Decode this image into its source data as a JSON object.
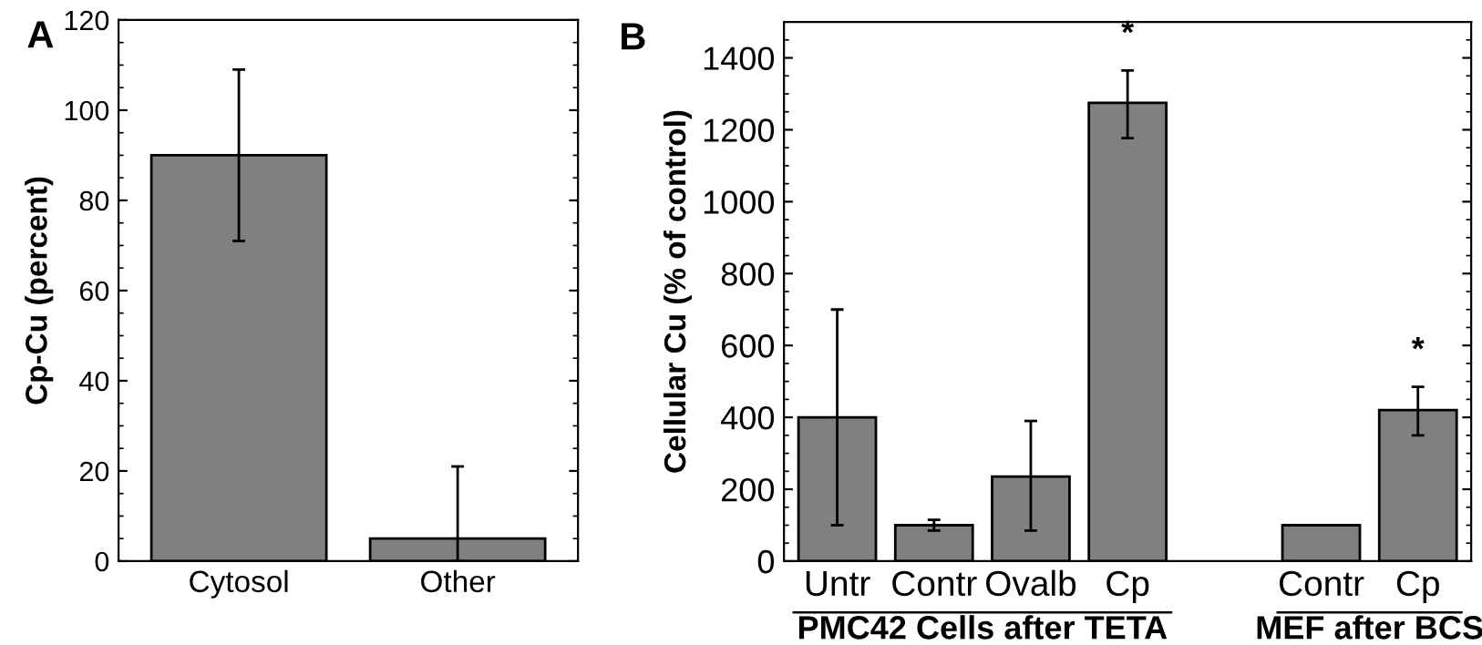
{
  "chart_data": [
    {
      "type": "bar",
      "title": "A",
      "ylabel": "Cp-Cu (percent)",
      "categories": [
        "Cytosol",
        "Other"
      ],
      "values": [
        90,
        5
      ],
      "errors": [
        [
          71,
          109
        ],
        [
          0,
          21
        ]
      ],
      "color": "#808080",
      "ylim": [
        0,
        120
      ],
      "yticks": [
        0,
        20,
        40,
        60,
        80,
        100,
        120
      ],
      "grid": false,
      "legend": false
    },
    {
      "type": "bar",
      "title": "B",
      "ylabel": "Cellular Cu (% of control)",
      "categories": [
        "Untr",
        "Contr",
        "Ovalb",
        "Cp",
        null,
        "Contr",
        "Cp"
      ],
      "values": [
        400,
        100,
        235,
        1275,
        null,
        100,
        420
      ],
      "errors": [
        [
          100,
          700
        ],
        [
          85,
          115
        ],
        [
          85,
          390
        ],
        [
          1177,
          1365
        ],
        null,
        null,
        [
          350,
          485
        ]
      ],
      "color": "#808080",
      "ylim": [
        0,
        1500
      ],
      "yticks": [
        0,
        200,
        400,
        600,
        800,
        1000,
        1200,
        1400
      ],
      "grid": false,
      "legend": false,
      "annotations": [
        "*",
        "*",
        "PMC42 Cells after TETA",
        "MEF after BCS"
      ]
    }
  ]
}
